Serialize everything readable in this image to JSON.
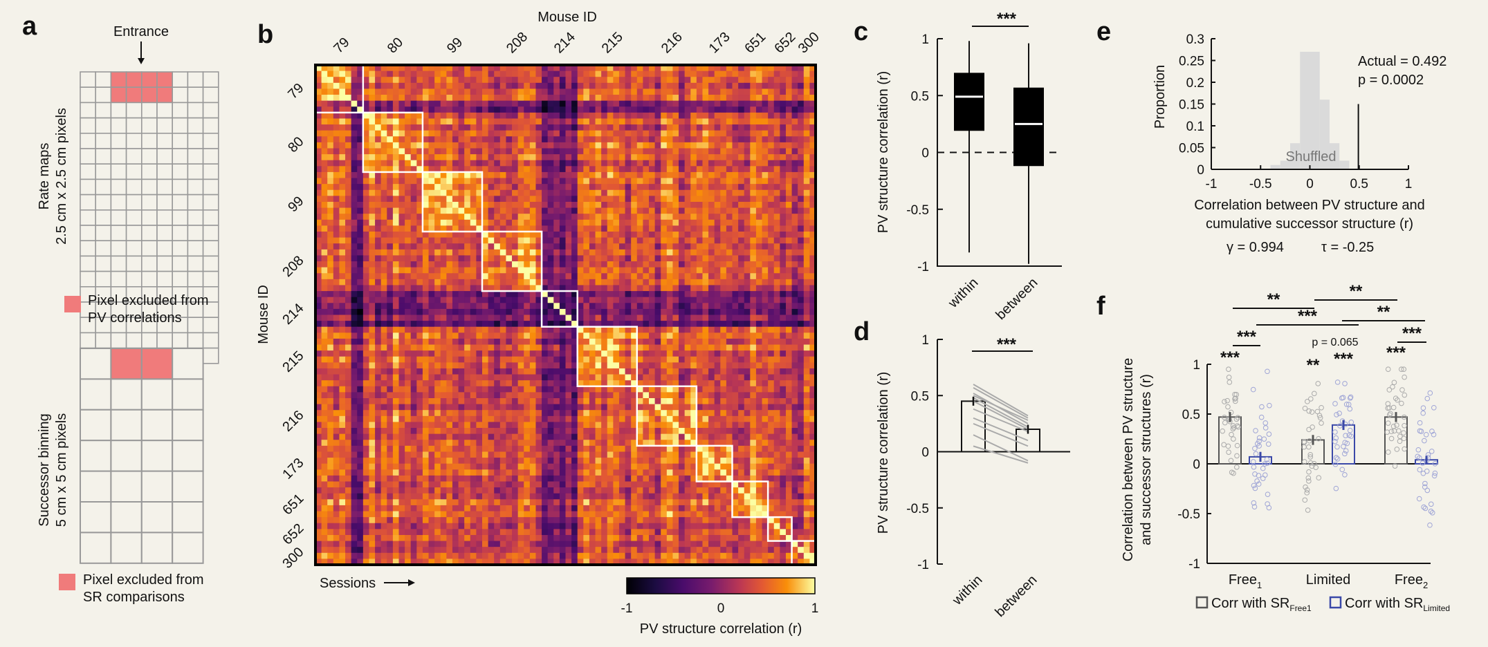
{
  "panel_labels": {
    "a": "a",
    "b": "b",
    "c": "c",
    "d": "d",
    "e": "e",
    "f": "f"
  },
  "panel_a": {
    "entrance": "Entrance",
    "grid1_label_line1": "Rate maps",
    "grid1_label_line2": "2.5 cm x 2.5 cm pixels",
    "legend1_line1": "Pixel excluded from",
    "legend1_line2": "PV correlations",
    "grid2_label_line1": "Successor binning",
    "grid2_label_line2": "5 cm x 5 cm pixels",
    "legend2_line1": "Pixel excluded from",
    "legend2_line2": "SR comparisons",
    "colors": {
      "excluded": "#f07b7b",
      "grid": "#999999"
    }
  },
  "chart_data": [
    {
      "panel": "b",
      "type": "heatmap",
      "title": "Mouse ID",
      "ylabel": "Mouse ID",
      "xlabel": "Sessions",
      "mouse_ids": [
        "79",
        "80",
        "99",
        "208",
        "214",
        "215",
        "216",
        "173",
        "651",
        "652",
        "300"
      ],
      "sessions_per_mouse": [
        4,
        5,
        5,
        5,
        3,
        5,
        5,
        3,
        3,
        2,
        2
      ],
      "colorbar": {
        "min": -1,
        "max": 1,
        "ticks": [
          "-1",
          "0",
          "1"
        ],
        "label": "PV structure correlation (r)"
      },
      "colormap": "inferno"
    },
    {
      "panel": "c",
      "type": "box",
      "categories": [
        "within",
        "between"
      ],
      "boxes": [
        {
          "name": "within",
          "whisker_low": -0.88,
          "q1": 0.19,
          "median": 0.49,
          "q3": 0.7,
          "whisker_high": 0.98
        },
        {
          "name": "between",
          "whisker_low": -0.98,
          "q1": -0.12,
          "median": 0.25,
          "q3": 0.57,
          "whisker_high": 0.96
        }
      ],
      "ylabel": "PV structure correlation (r)",
      "ylim": [
        -1,
        1
      ],
      "yticks": [
        "-1",
        "-0.5",
        "0",
        "0.5",
        "1"
      ],
      "significance": "***"
    },
    {
      "panel": "d",
      "type": "bar",
      "categories": [
        "within",
        "between"
      ],
      "values": [
        0.45,
        0.2
      ],
      "errors": [
        0.04,
        0.04
      ],
      "paired_lines": [
        [
          0.6,
          0.32
        ],
        [
          0.57,
          0.3
        ],
        [
          0.52,
          0.25
        ],
        [
          0.5,
          0.28
        ],
        [
          0.48,
          0.22
        ],
        [
          0.45,
          0.2
        ],
        [
          0.38,
          0.18
        ],
        [
          0.3,
          0.1
        ],
        [
          0.25,
          0.05
        ],
        [
          0.15,
          -0.08
        ],
        [
          0.05,
          -0.1
        ]
      ],
      "ylabel": "PV structure correlation (r)",
      "ylim": [
        -1,
        1
      ],
      "yticks": [
        "-1",
        "-0.5",
        "0",
        "0.5",
        "1"
      ],
      "significance": "***"
    },
    {
      "panel": "e",
      "type": "histogram",
      "bins": [
        [
          -0.4,
          -0.3,
          0.01
        ],
        [
          -0.3,
          -0.2,
          0.02
        ],
        [
          -0.2,
          -0.1,
          0.06
        ],
        [
          -0.1,
          0.1,
          0.27
        ],
        [
          0.1,
          0.2,
          0.16
        ],
        [
          0.2,
          0.3,
          0.06
        ],
        [
          0.3,
          0.4,
          0.02
        ]
      ],
      "actual": 0.492,
      "annotation_actual": "Actual = 0.492",
      "annotation_p": "p = 0.0002",
      "shuffled_label": "Shuffled",
      "ylabel": "Proportion",
      "xlabel_line1": "Correlation between PV structure and",
      "xlabel_line2": "cumulative successor structure (r)",
      "xlim": [
        -1,
        1
      ],
      "ylim": [
        0,
        0.3
      ],
      "xticks": [
        "-1",
        "-0.5",
        "0",
        "0.5",
        "1"
      ],
      "yticks": [
        "0",
        "0.05",
        "0.1",
        "0.15",
        "0.2",
        "0.25",
        "0.3"
      ],
      "params": {
        "gamma": "γ = 0.994",
        "tau": "τ = -0.25"
      }
    },
    {
      "panel": "f",
      "type": "bar",
      "categories": [
        {
          "name": "Free",
          "sub": "1"
        },
        {
          "name": "Limited",
          "sub": ""
        },
        {
          "name": "Free",
          "sub": "2"
        }
      ],
      "series": [
        {
          "name": "Corr with SR",
          "sub": "Free1",
          "color": "#555555",
          "values": [
            0.47,
            0.24,
            0.47
          ],
          "errors": [
            0.05,
            0.05,
            0.05
          ]
        },
        {
          "name": "Corr with SR",
          "sub": "Limited",
          "color": "#3a48a8",
          "values": [
            0.07,
            0.39,
            0.04
          ],
          "errors": [
            0.05,
            0.05,
            0.04
          ]
        }
      ],
      "ylabel_line1": "Correlation between PV structure",
      "ylabel_line2": "and successor structures (r)",
      "ylim": [
        -1,
        1
      ],
      "yticks": [
        "-1",
        "-0.5",
        "0",
        "0.5",
        "1"
      ],
      "bar_stars": [
        "***",
        "",
        "**",
        "***",
        "***",
        ""
      ],
      "comparison_stars": [
        "***",
        "**",
        "***",
        "**",
        "**",
        "***"
      ],
      "p_annotation": "p = 0.065"
    }
  ],
  "colors": {
    "background": "#f4f2ea",
    "blue": "#3a48a8",
    "grey": "#555555",
    "box": "#000000"
  }
}
